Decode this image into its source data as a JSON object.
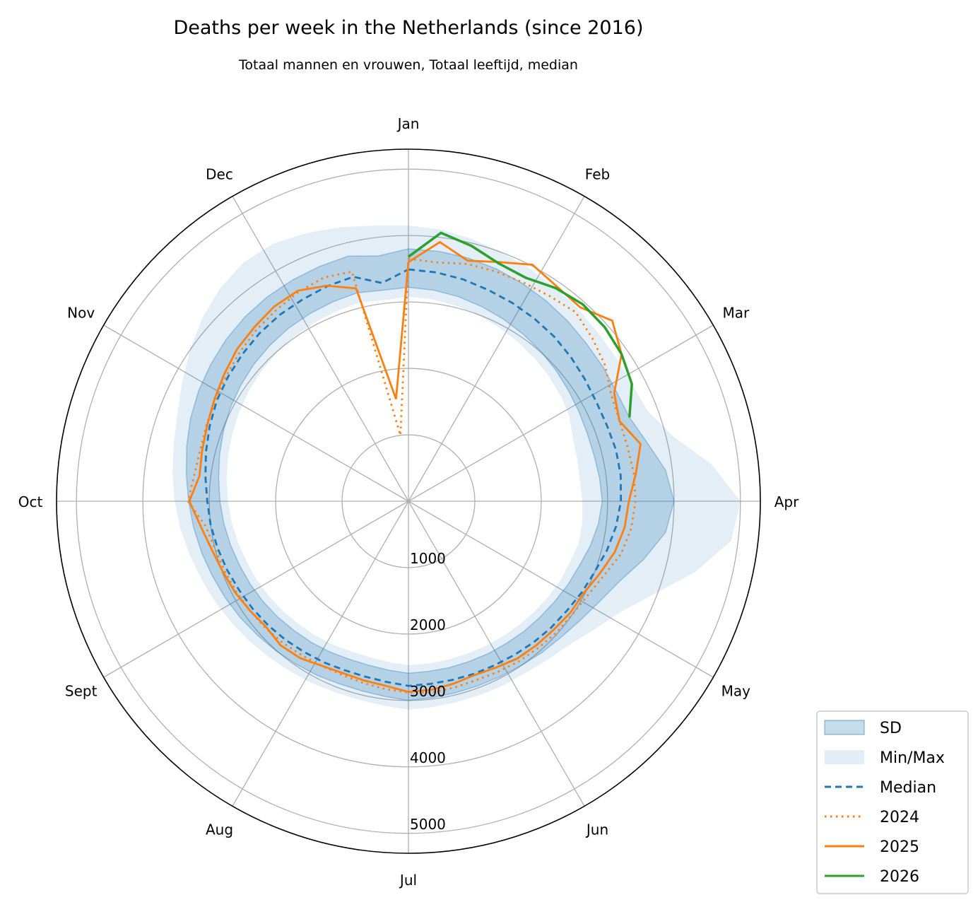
{
  "chart_data": {
    "type": "line",
    "projection": "polar",
    "title": "Deaths per week in the Netherlands (since 2016)",
    "subtitle": "Totaal mannen en vrouwen, Totaal leeftijd, median",
    "angular_tick_labels": [
      "Jan",
      "Feb",
      "Mar",
      "Apr",
      "May",
      "Jun",
      "Jul",
      "Aug",
      "Sept",
      "Oct",
      "Nov",
      "Dec"
    ],
    "radial_tick_labels": [
      "1000",
      "2000",
      "3000",
      "4000",
      "5000"
    ],
    "radial_ticks": [
      1000,
      2000,
      3000,
      4000,
      5000
    ],
    "rlim": [
      0,
      5300
    ],
    "direction": "clockwise",
    "zero_location": "top",
    "grid": true,
    "legend_placement": "lower-right",
    "x_unit": "week",
    "weeks": [
      1,
      2,
      3,
      4,
      5,
      6,
      7,
      8,
      9,
      10,
      11,
      12,
      13,
      14,
      15,
      16,
      17,
      18,
      19,
      20,
      21,
      22,
      23,
      24,
      25,
      26,
      27,
      28,
      29,
      30,
      31,
      32,
      33,
      34,
      35,
      36,
      37,
      38,
      39,
      40,
      41,
      42,
      43,
      44,
      45,
      46,
      47,
      48,
      49,
      50,
      51,
      52
    ],
    "bands": [
      {
        "name": "Min/Max",
        "color": "#1f77b4",
        "opacity": 0.2,
        "lower": [
          3080,
          3060,
          3030,
          2990,
          2950,
          2910,
          2870,
          2830,
          2790,
          2740,
          2650,
          2620,
          2600,
          2620,
          2640,
          2640,
          2600,
          2580,
          2550,
          2520,
          2500,
          2480,
          2470,
          2460,
          2460,
          2460,
          2470,
          2440,
          2420,
          2420,
          2440,
          2460,
          2480,
          2510,
          2540,
          2570,
          2600,
          2640,
          2680,
          2720,
          2760,
          2800,
          2840,
          2880,
          2920,
          2960,
          2990,
          3020,
          3040,
          3060,
          3080,
          3050
        ],
        "upper": [
          4150,
          4120,
          4060,
          4000,
          3950,
          3900,
          3860,
          3820,
          3800,
          3800,
          3850,
          4100,
          4600,
          5000,
          4900,
          4450,
          3950,
          3600,
          3400,
          3250,
          3180,
          3130,
          3120,
          3110,
          3110,
          3120,
          3140,
          3100,
          3080,
          3080,
          3100,
          3120,
          3150,
          3190,
          3230,
          3280,
          3330,
          3390,
          3460,
          3520,
          3580,
          3640,
          3720,
          3850,
          4000,
          4150,
          4280,
          4370,
          4380,
          4320,
          4250,
          4180
        ]
      },
      {
        "name": "SD",
        "color": "#1f77b4",
        "opacity": 0.4,
        "lower": [
          3220,
          3200,
          3170,
          3130,
          3090,
          3050,
          3010,
          2970,
          2930,
          2900,
          2880,
          2880,
          2900,
          2920,
          2880,
          2820,
          2750,
          2710,
          2670,
          2640,
          2620,
          2600,
          2590,
          2580,
          2580,
          2580,
          2590,
          2560,
          2540,
          2540,
          2560,
          2580,
          2600,
          2630,
          2660,
          2690,
          2720,
          2760,
          2800,
          2840,
          2880,
          2930,
          2980,
          3030,
          3070,
          3110,
          3140,
          3170,
          3190,
          3210,
          3230,
          3200
        ],
        "upper": [
          3800,
          3790,
          3770,
          3740,
          3700,
          3660,
          3620,
          3580,
          3560,
          3540,
          3560,
          3700,
          3900,
          4000,
          3900,
          3650,
          3400,
          3250,
          3150,
          3080,
          3040,
          3000,
          2980,
          2970,
          2970,
          2980,
          3000,
          2960,
          2940,
          2940,
          2960,
          2980,
          3010,
          3040,
          3080,
          3120,
          3160,
          3210,
          3260,
          3310,
          3370,
          3440,
          3510,
          3570,
          3620,
          3670,
          3710,
          3740,
          3760,
          3780,
          3800,
          3720
        ]
      }
    ],
    "series": [
      {
        "name": "Median",
        "color": "#1f77b4",
        "style": "dashed",
        "values": [
          3490,
          3470,
          3440,
          3400,
          3370,
          3340,
          3310,
          3270,
          3230,
          3200,
          3200,
          3220,
          3220,
          3200,
          3150,
          3080,
          3000,
          2950,
          2900,
          2870,
          2840,
          2810,
          2790,
          2780,
          2770,
          2770,
          2780,
          2740,
          2720,
          2720,
          2740,
          2760,
          2790,
          2820,
          2850,
          2880,
          2920,
          2960,
          3000,
          3030,
          3080,
          3140,
          3200,
          3260,
          3300,
          3340,
          3380,
          3410,
          3430,
          3460,
          3480,
          3310
        ]
      },
      {
        "name": "2024",
        "color": "#ff7f0e",
        "style": "dotted",
        "values": [
          3650,
          3620,
          3680,
          3700,
          3720,
          3750,
          3800,
          3700,
          3600,
          3450,
          3400,
          3400,
          3420,
          3420,
          3380,
          3300,
          3150,
          3050,
          3000,
          2980,
          2950,
          2930,
          2900,
          2880,
          2890,
          2900,
          2880,
          2850,
          2820,
          2800,
          2800,
          2820,
          2850,
          2880,
          2900,
          2930,
          2960,
          3000,
          3080,
          3320,
          3250,
          3230,
          3250,
          3280,
          3330,
          3390,
          3450,
          3500,
          3560,
          3600,
          3560,
          1000
        ]
      },
      {
        "name": "2025",
        "color": "#ff7f0e",
        "style": "solid",
        "values": [
          3600,
          3930,
          3730,
          3850,
          4020,
          3930,
          3900,
          4100,
          3900,
          3500,
          3400,
          3600,
          3450,
          3320,
          3280,
          3200,
          3080,
          2980,
          2960,
          2920,
          2900,
          2880,
          2830,
          2800,
          2830,
          2860,
          2870,
          2800,
          2780,
          2770,
          2800,
          2870,
          2900,
          2860,
          2900,
          2950,
          2990,
          3050,
          3150,
          3300,
          3170,
          3200,
          3240,
          3300,
          3370,
          3450,
          3500,
          3560,
          3580,
          3470,
          3300,
          1550
        ]
      },
      {
        "name": "2026",
        "color": "#2ca02c",
        "style": "solid",
        "values": [
          3680,
          4070,
          3960,
          3830,
          3800,
          3900,
          3960,
          3950,
          3900,
          3800,
          3560
        ]
      }
    ]
  },
  "legend": [
    {
      "label": "SD",
      "kind": "patch",
      "color": "#1f77b4",
      "opacity": 0.4
    },
    {
      "label": "Min/Max",
      "kind": "patch",
      "color": "#1f77b4",
      "opacity": 0.2
    },
    {
      "label": "Median",
      "kind": "line",
      "color": "#1f77b4",
      "style": "dashed"
    },
    {
      "label": "2024",
      "kind": "line",
      "color": "#ff7f0e",
      "style": "dotted"
    },
    {
      "label": "2025",
      "kind": "line",
      "color": "#ff7f0e",
      "style": "solid"
    },
    {
      "label": "2026",
      "kind": "line",
      "color": "#2ca02c",
      "style": "solid"
    }
  ]
}
